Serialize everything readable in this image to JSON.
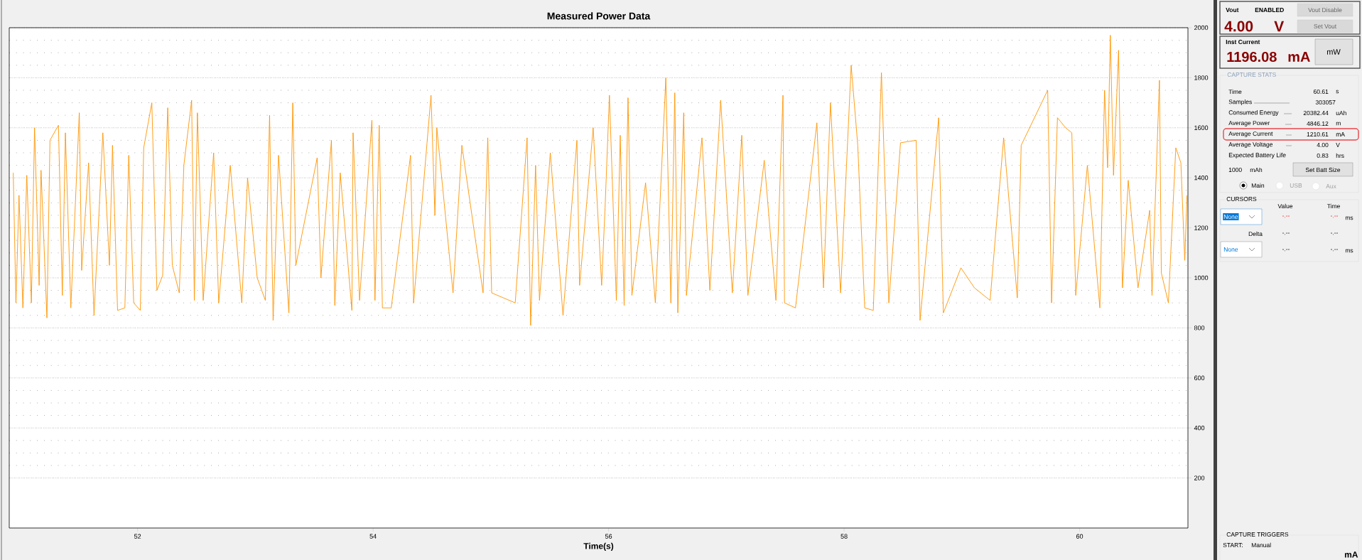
{
  "chart_data": [
    {
      "type": "line",
      "title": "Measured Power Data",
      "xlabel": "Time(s)",
      "ylabel": "mA",
      "color": "#ff9400",
      "grid": "y",
      "xlim": [
        50.91,
        60.92
      ],
      "xticks": [
        52,
        54,
        56,
        58,
        60
      ],
      "ylim": [
        0,
        2000
      ],
      "yticks": [
        200,
        400,
        600,
        800,
        1000,
        1200,
        1400,
        1600,
        1800,
        2000
      ],
      "x": [
        50.944,
        50.967,
        50.993,
        51.026,
        51.059,
        51.098,
        51.125,
        51.164,
        51.18,
        51.23,
        51.256,
        51.328,
        51.361,
        51.387,
        51.433,
        51.505,
        51.525,
        51.584,
        51.63,
        51.705,
        51.761,
        51.787,
        51.83,
        51.892,
        51.925,
        51.967,
        52.023,
        52.052,
        52.121,
        52.164,
        52.213,
        52.256,
        52.295,
        52.354,
        52.393,
        52.459,
        52.482,
        52.508,
        52.557,
        52.646,
        52.689,
        52.787,
        52.885,
        52.934,
        53.016,
        53.085,
        53.121,
        53.151,
        53.197,
        53.285,
        53.318,
        53.344,
        53.525,
        53.557,
        53.646,
        53.675,
        53.721,
        53.82,
        53.83,
        53.885,
        53.99,
        54.016,
        54.052,
        54.079,
        54.154,
        54.318,
        54.344,
        54.492,
        54.525,
        54.541,
        54.679,
        54.754,
        54.934,
        54.974,
        55.007,
        55.207,
        55.308,
        55.338,
        55.38,
        55.413,
        55.505,
        55.613,
        55.731,
        55.754,
        55.869,
        55.941,
        55.97,
        56.007,
        56.066,
        56.099,
        56.132,
        56.165,
        56.198,
        56.314,
        56.397,
        56.486,
        56.529,
        56.562,
        56.588,
        56.638,
        56.661,
        56.793,
        56.86,
        56.952,
        57.051,
        57.131,
        57.183,
        57.322,
        57.421,
        57.481,
        57.494,
        57.587,
        57.769,
        57.825,
        57.884,
        57.97,
        58.06,
        58.116,
        58.175,
        58.248,
        58.317,
        58.38,
        58.479,
        58.612,
        58.645,
        58.803,
        58.843,
        58.992,
        59.107,
        59.24,
        59.355,
        59.471,
        59.504,
        59.729,
        59.762,
        59.812,
        59.881,
        59.934,
        59.967,
        60.066,
        60.172,
        60.212,
        60.238,
        60.261,
        60.288,
        60.331,
        60.364,
        60.413,
        60.496,
        60.595,
        60.615,
        60.678,
        60.694,
        60.754,
        60.817,
        60.86,
        60.893,
        60.912
      ],
      "values": [
        1420,
        900,
        1330,
        880,
        1410,
        900,
        1600,
        970,
        1430,
        840,
        1550,
        1610,
        930,
        1580,
        880,
        1660,
        1030,
        1460,
        850,
        1580,
        1050,
        1530,
        870,
        880,
        1490,
        900,
        870,
        1520,
        1700,
        950,
        1010,
        1680,
        1050,
        940,
        1450,
        1710,
        910,
        1660,
        910,
        1500,
        900,
        1450,
        900,
        1400,
        1000,
        910,
        1650,
        830,
        1490,
        860,
        1700,
        1050,
        1480,
        1000,
        1550,
        890,
        1420,
        870,
        1580,
        910,
        1630,
        910,
        1610,
        880,
        880,
        1490,
        900,
        1730,
        1250,
        1600,
        940,
        1530,
        940,
        1560,
        940,
        900,
        1560,
        810,
        1450,
        910,
        1500,
        850,
        1550,
        970,
        1600,
        970,
        1280,
        1730,
        910,
        1570,
        890,
        1720,
        930,
        1380,
        900,
        1800,
        900,
        1740,
        860,
        1660,
        930,
        1560,
        950,
        1710,
        940,
        1570,
        930,
        1470,
        910,
        1730,
        900,
        880,
        1620,
        960,
        1700,
        940,
        1850,
        1530,
        880,
        870,
        1820,
        900,
        1540,
        1550,
        830,
        1640,
        860,
        1040,
        960,
        910,
        1560,
        920,
        1530,
        1750,
        900,
        1640,
        1600,
        1580,
        930,
        1450,
        880,
        1750,
        1440,
        1970,
        1410,
        1910,
        960,
        1390,
        960,
        1270,
        930,
        1790,
        1020,
        900,
        1520,
        1460,
        1070,
        1330
      ]
    },
    {
      "type": "other",
      "annotations": [
        "Vout",
        "ENABLED",
        "4.00",
        "V",
        "Vout Disable",
        "Set Vout",
        "Inst Current",
        "1196.08",
        "mA",
        "mW",
        "CAPTURE STATS",
        "Time",
        "60.61",
        "s",
        "Samples",
        "303057",
        "Consumed Energy",
        "20382.44",
        "uAh",
        "Average Power",
        "4846.12",
        "m",
        "Average Current",
        "1210.61",
        "mA",
        "Average Voltage",
        "4.00",
        "V",
        "Expected Battery Life",
        "0.83",
        "hrs",
        "1000",
        "mAh",
        "Set Batt Size",
        "Main",
        "USB",
        "Aux",
        "CURSORS",
        "Value",
        "Time",
        "None",
        "-.--",
        "-.--",
        "ms",
        "Delta",
        "-.--",
        "-.--",
        "None",
        "-.--",
        "-.--",
        "ms",
        "CAPTURE TRIGGERS",
        "START:",
        "Manual"
      ]
    }
  ]
}
